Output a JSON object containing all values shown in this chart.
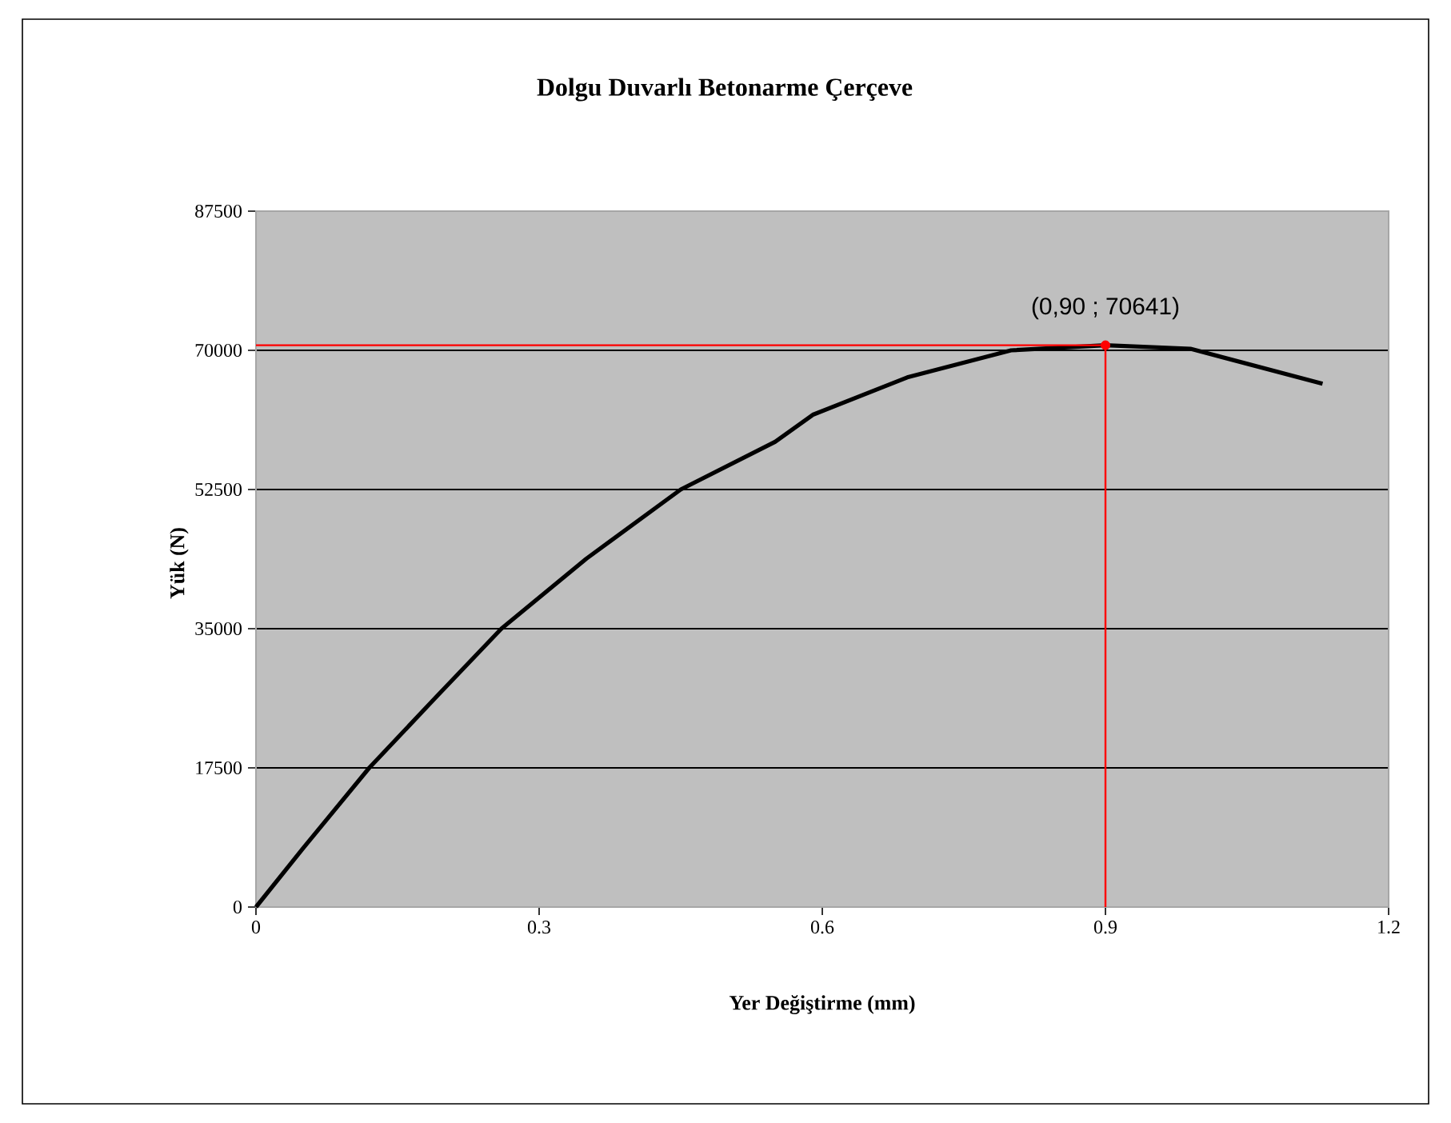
{
  "chart_data": {
    "type": "line",
    "title": "Dolgu Duvarlı Betonarme Çerçeve",
    "xlabel": "Yer Değiştirme (mm)",
    "ylabel": "Yük (N)",
    "xlim": [
      0,
      1.2
    ],
    "xticks": [
      0,
      0.3,
      0.6,
      0.9,
      1.2
    ],
    "ylim": [
      0,
      87500
    ],
    "yticks": [
      0,
      17500,
      35000,
      52500,
      70000,
      87500
    ],
    "grid": "y",
    "series": [
      {
        "color": "#000000",
        "marker": "none",
        "x": [
          0,
          0.05,
          0.12,
          0.19,
          0.26,
          0.35,
          0.45,
          0.55,
          0.59,
          0.69,
          0.8,
          0.9,
          0.99,
          1.13
        ],
        "values": [
          0,
          7400,
          17500,
          26300,
          35000,
          43800,
          52500,
          58500,
          61900,
          66600,
          70000,
          70641,
          70200,
          65800
        ]
      },
      {
        "color": "#ff0000",
        "marker": "none",
        "x": [
          0,
          0.9,
          0.9
        ],
        "values": [
          70641,
          70641,
          0
        ]
      },
      {
        "type": "scatter",
        "color": "#ff0000",
        "marker": "circle",
        "x": [
          0.9
        ],
        "values": [
          70641
        ]
      }
    ],
    "annotations": [
      {
        "text": "(0,90 ; 70641)",
        "x": 0.9,
        "y": 70641
      }
    ]
  }
}
